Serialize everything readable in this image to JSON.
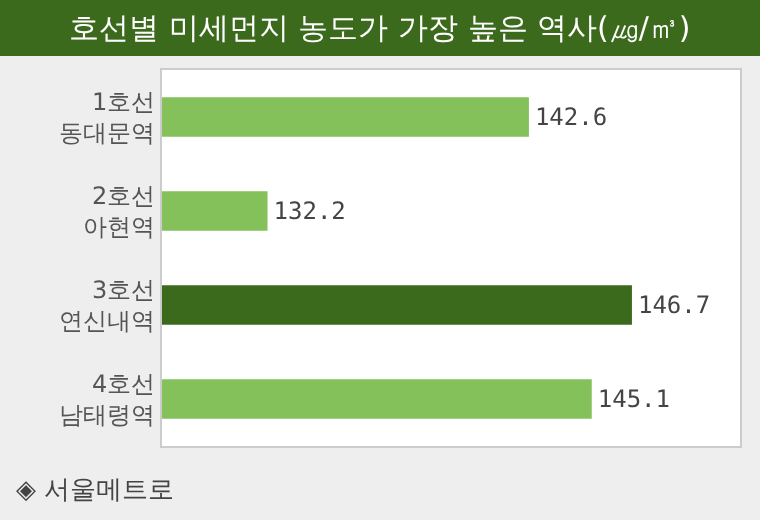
{
  "chart_data": {
    "type": "bar",
    "orientation": "horizontal",
    "title": "호선별 미세먼지 농도가 가장 높은 역사(㎍/㎥)",
    "categories": [
      "1호선 동대문역",
      "2호선 아현역",
      "3호선 연신내역",
      "4호선 남태령역"
    ],
    "values": [
      142.6,
      132.2,
      146.7,
      145.1
    ],
    "colors": [
      "#85c15a",
      "#85c15a",
      "#3c6a1d",
      "#85c15a"
    ],
    "xlim": [
      128,
      151
    ],
    "data_labels": true,
    "grid": false,
    "tick_labels": "y",
    "annotations": [
      "◈ 서울메트로"
    ]
  }
}
